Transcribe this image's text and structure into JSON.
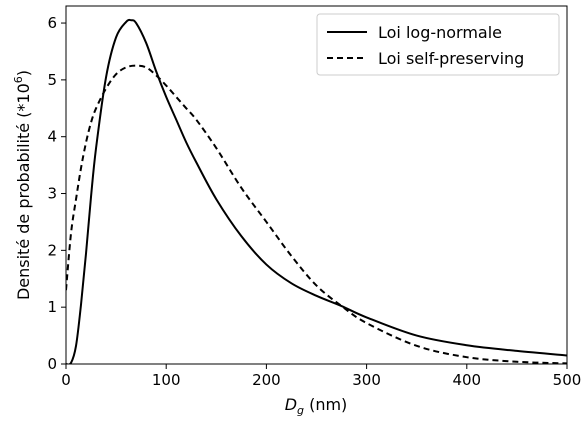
{
  "chart_data": {
    "type": "line",
    "xlabel": "D_g (nm)",
    "ylabel": "Densité de probabilité (*10^6)",
    "xlim": [
      0,
      500
    ],
    "ylim": [
      0,
      6.3
    ],
    "x_ticks": [
      0,
      100,
      200,
      300,
      400,
      500
    ],
    "y_ticks": [
      0,
      1,
      2,
      3,
      4,
      5,
      6
    ],
    "grid": false,
    "legend": "top-right",
    "series": [
      {
        "name": "Loi log-normale",
        "style": "solid",
        "color": "#000000",
        "x": [
          0,
          5,
          10,
          15,
          20,
          25,
          30,
          40,
          50,
          60,
          65,
          70,
          80,
          90,
          100,
          110,
          120,
          130,
          150,
          175,
          200,
          225,
          250,
          275,
          300,
          350,
          400,
          450,
          500
        ],
        "y": [
          0,
          0.02,
          0.32,
          1.05,
          1.95,
          2.95,
          3.8,
          5.05,
          5.75,
          6.02,
          6.05,
          6.0,
          5.65,
          5.15,
          4.7,
          4.3,
          3.9,
          3.55,
          2.9,
          2.25,
          1.75,
          1.42,
          1.2,
          1.02,
          0.82,
          0.5,
          0.33,
          0.23,
          0.15
        ]
      },
      {
        "name": "Loi self-preserving",
        "style": "dashed",
        "color": "#000000",
        "x": [
          0,
          5,
          10,
          15,
          20,
          25,
          30,
          40,
          50,
          60,
          70,
          80,
          90,
          100,
          110,
          120,
          130,
          150,
          175,
          200,
          225,
          250,
          275,
          300,
          350,
          400,
          450,
          500
        ],
        "y": [
          1.3,
          2.3,
          2.9,
          3.45,
          3.9,
          4.25,
          4.5,
          4.85,
          5.1,
          5.22,
          5.25,
          5.22,
          5.08,
          4.9,
          4.7,
          4.5,
          4.3,
          3.8,
          3.1,
          2.5,
          1.9,
          1.38,
          1.02,
          0.72,
          0.32,
          0.12,
          0.04,
          0.01
        ]
      }
    ]
  }
}
